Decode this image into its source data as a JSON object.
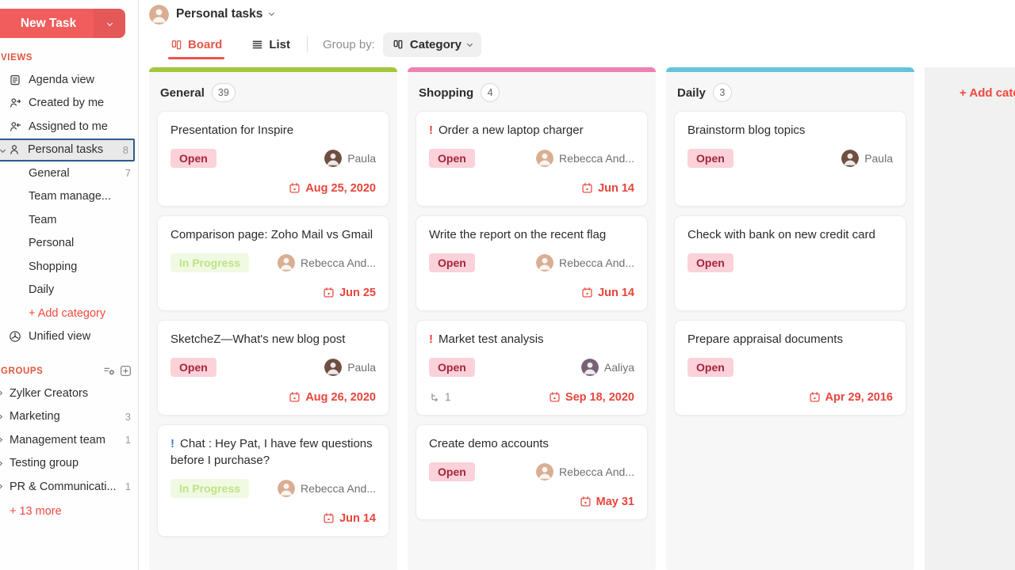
{
  "colors": {
    "accent_red": "#f0483e",
    "new_task_bg": "#f15d5d",
    "selected_border": "#2b5d90",
    "open_badge_bg": "#fcd2da",
    "open_badge_text": "#a3243a",
    "progress_badge_bg": "#f0fae2",
    "progress_badge_text": "#bfe287",
    "due_date_red": "#e8443b",
    "priority_red": "#ef3b30",
    "priority_blue": "#3a7fd5",
    "avatar_colors": {
      "Paula": "#6e4f41",
      "Rebecca And...": "#d9ae93",
      "Aaliya": "#786175",
      "header": "#d9ae93"
    }
  },
  "sidebar": {
    "new_task_label": "New Task",
    "views_header": "VIEWS",
    "views": [
      {
        "label": "Agenda view",
        "icon": "agenda-icon"
      },
      {
        "label": "Created by me",
        "icon": "created-by-icon"
      },
      {
        "label": "Assigned to me",
        "icon": "assigned-to-icon"
      },
      {
        "label": "Personal tasks",
        "icon": "person-icon",
        "count": "8",
        "selected": true
      },
      {
        "label": "General",
        "count": "7",
        "indent": true
      },
      {
        "label": "Team manage...",
        "indent": true
      },
      {
        "label": "Team",
        "indent": true
      },
      {
        "label": "Personal",
        "indent": true
      },
      {
        "label": "Shopping",
        "indent": true
      },
      {
        "label": "Daily",
        "indent": true
      },
      {
        "label": "+ Add category",
        "indent": true,
        "link": true
      },
      {
        "label": "Unified view",
        "icon": "unified-icon"
      }
    ],
    "groups_header": "GROUPS",
    "groups": [
      {
        "label": "Zylker Creators"
      },
      {
        "label": "Marketing",
        "count": "3"
      },
      {
        "label": "Management team",
        "count": "1"
      },
      {
        "label": "Testing group"
      },
      {
        "label": "PR & Communicati...",
        "count": "1"
      }
    ],
    "more_link": "+ 13 more"
  },
  "header": {
    "title": "Personal tasks",
    "tabs": [
      {
        "label": "Board",
        "active": true
      },
      {
        "label": "List",
        "active": false
      }
    ],
    "group_by_label": "Group by:",
    "group_by_value": "Category"
  },
  "board": {
    "add_category_label": "+ Add category",
    "columns": [
      {
        "name": "General",
        "count": "39",
        "color": "#a6c63c",
        "cards": [
          {
            "title": "Presentation for Inspire",
            "status": "Open",
            "status_type": "open",
            "assignee": "Paula",
            "due": "Aug 25, 2020"
          },
          {
            "title": "Comparison page: Zoho Mail vs Gmail",
            "status": "In Progress",
            "status_type": "progress",
            "assignee": "Rebecca And...",
            "due": "Jun 25"
          },
          {
            "title": "SketcheZ—What's new blog post",
            "status": "Open",
            "status_type": "open",
            "assignee": "Paula",
            "due": "Aug 26, 2020"
          },
          {
            "title": "Chat : Hey Pat, I have few questions before I purchase?",
            "priority": "!",
            "priority_color": "blue",
            "status": "In Progress",
            "status_type": "progress",
            "assignee": "Rebecca And...",
            "due": "Jun 14"
          }
        ]
      },
      {
        "name": "Shopping",
        "count": "4",
        "color": "#ee80b2",
        "cards": [
          {
            "title": "Order a new laptop charger",
            "priority": "!",
            "priority_color": "red",
            "status": "Open",
            "status_type": "open",
            "assignee": "Rebecca And...",
            "due": "Jun 14"
          },
          {
            "title": "Write the report on the recent flag",
            "status": "Open",
            "status_type": "open",
            "assignee": "Rebecca And...",
            "due": "Jun 14"
          },
          {
            "title": "Market test analysis",
            "priority": "!",
            "priority_color": "red",
            "status": "Open",
            "status_type": "open",
            "assignee": "Aaliya",
            "subtasks": "1",
            "due": "Sep 18, 2020"
          },
          {
            "title": "Create demo accounts",
            "status": "Open",
            "status_type": "open",
            "assignee": "Rebecca And...",
            "due": "May 31"
          }
        ]
      },
      {
        "name": "Daily",
        "count": "3",
        "color": "#66c4da",
        "cards": [
          {
            "title": "Brainstorm blog topics",
            "status": "Open",
            "status_type": "open",
            "assignee": "Paula"
          },
          {
            "title": "Check with bank on new credit card",
            "status": "Open",
            "status_type": "open"
          },
          {
            "title": "Prepare appraisal documents",
            "status": "Open",
            "status_type": "open",
            "due": "Apr 29, 2016"
          }
        ]
      }
    ]
  }
}
